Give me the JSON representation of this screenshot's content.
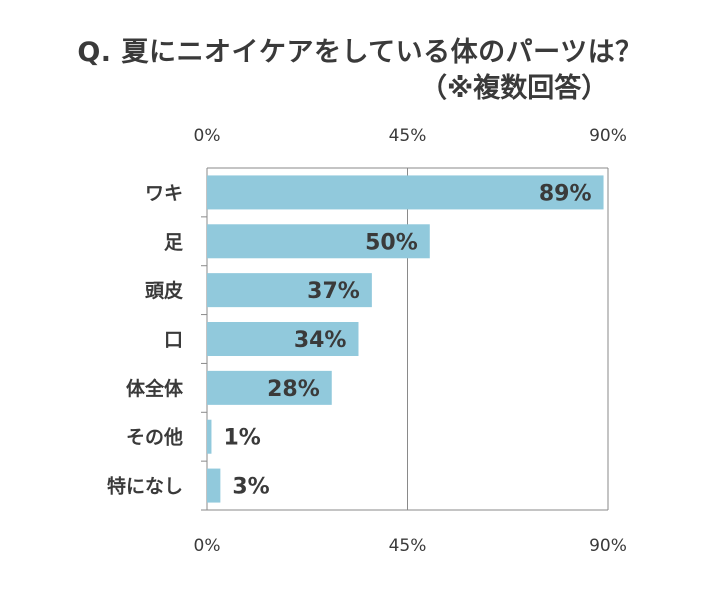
{
  "chart_data": {
    "type": "bar",
    "orientation": "horizontal",
    "title": "Q. 夏にニオイケアをしている体のパーツは？",
    "subtitle": "（※複数回答）",
    "categories": [
      "ワキ",
      "足",
      "頭皮",
      "口",
      "体全体",
      "その他",
      "特になし"
    ],
    "values": [
      89,
      50,
      37,
      34,
      28,
      1,
      3
    ],
    "value_labels": [
      "89%",
      "50%",
      "37%",
      "34%",
      "28%",
      "1%",
      "3%"
    ],
    "x_ticks": [
      "0%",
      "45%",
      "90%"
    ],
    "xlim": [
      0,
      90
    ],
    "grid": true,
    "bar_color": "#91c9dc"
  }
}
